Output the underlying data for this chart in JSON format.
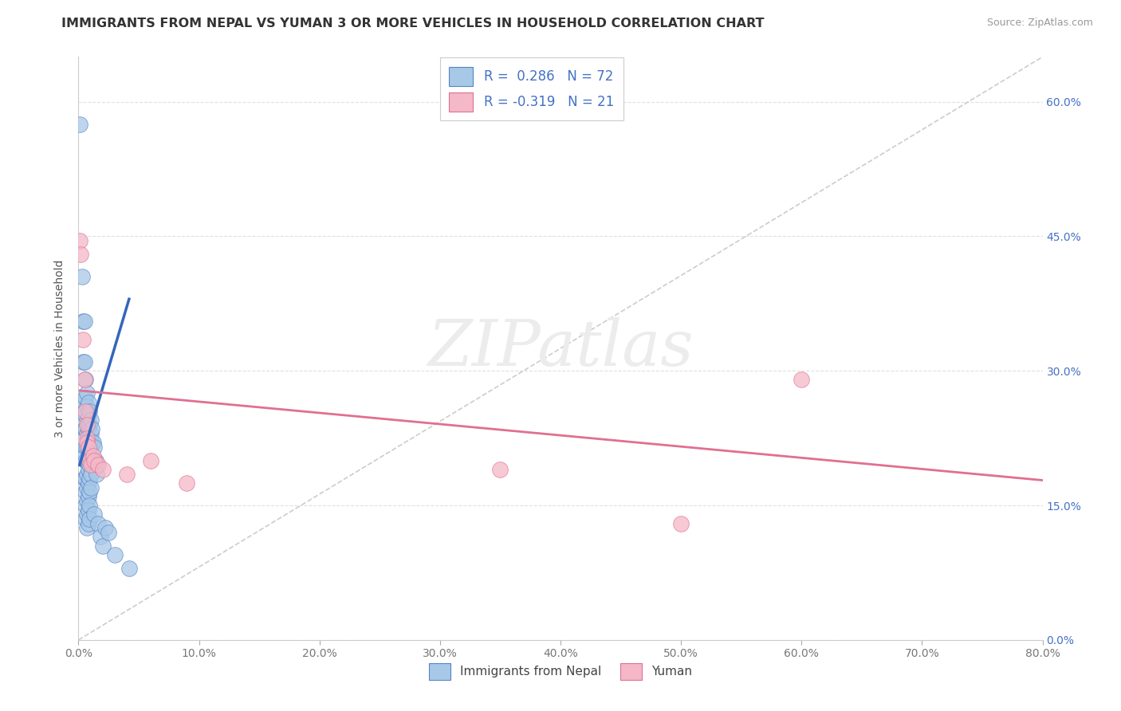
{
  "title": "IMMIGRANTS FROM NEPAL VS YUMAN 3 OR MORE VEHICLES IN HOUSEHOLD CORRELATION CHART",
  "source": "Source: ZipAtlas.com",
  "ylabel": "3 or more Vehicles in Household",
  "xmin": 0.0,
  "xmax": 0.8,
  "ymin": 0.0,
  "ymax": 0.65,
  "ytick_vals": [
    0.0,
    0.15,
    0.3,
    0.45,
    0.6
  ],
  "ytick_labels": [
    "0.0%",
    "15.0%",
    "30.0%",
    "45.0%",
    "60.0%"
  ],
  "xtick_vals": [
    0.0,
    0.1,
    0.2,
    0.3,
    0.4,
    0.5,
    0.6,
    0.7,
    0.8
  ],
  "xtick_labels": [
    "0.0%",
    "10.0%",
    "20.0%",
    "30.0%",
    "40.0%",
    "50.0%",
    "60.0%",
    "70.0%",
    "80.0%"
  ],
  "blue_color": "#a8c8e8",
  "pink_color": "#f4b8c8",
  "blue_edge_color": "#5585c5",
  "pink_edge_color": "#e07090",
  "blue_line_color": "#3366BB",
  "pink_line_color": "#E07090",
  "trend_line_color": "#c0c0c0",
  "background_color": "#ffffff",
  "grid_color": "#e0e0e0",
  "blue_scatter": [
    [
      0.001,
      0.575
    ],
    [
      0.003,
      0.405
    ],
    [
      0.004,
      0.355
    ],
    [
      0.004,
      0.31
    ],
    [
      0.005,
      0.355
    ],
    [
      0.005,
      0.31
    ],
    [
      0.005,
      0.265
    ],
    [
      0.005,
      0.235
    ],
    [
      0.005,
      0.205
    ],
    [
      0.005,
      0.18
    ],
    [
      0.006,
      0.29
    ],
    [
      0.006,
      0.27
    ],
    [
      0.006,
      0.25
    ],
    [
      0.006,
      0.235
    ],
    [
      0.006,
      0.215
    ],
    [
      0.006,
      0.2
    ],
    [
      0.006,
      0.18
    ],
    [
      0.006,
      0.165
    ],
    [
      0.006,
      0.15
    ],
    [
      0.006,
      0.135
    ],
    [
      0.007,
      0.275
    ],
    [
      0.007,
      0.26
    ],
    [
      0.007,
      0.245
    ],
    [
      0.007,
      0.23
    ],
    [
      0.007,
      0.215
    ],
    [
      0.007,
      0.2
    ],
    [
      0.007,
      0.185
    ],
    [
      0.007,
      0.17
    ],
    [
      0.007,
      0.155
    ],
    [
      0.007,
      0.14
    ],
    [
      0.007,
      0.125
    ],
    [
      0.008,
      0.265
    ],
    [
      0.008,
      0.25
    ],
    [
      0.008,
      0.235
    ],
    [
      0.008,
      0.22
    ],
    [
      0.008,
      0.205
    ],
    [
      0.008,
      0.19
    ],
    [
      0.008,
      0.175
    ],
    [
      0.008,
      0.16
    ],
    [
      0.008,
      0.145
    ],
    [
      0.008,
      0.13
    ],
    [
      0.009,
      0.255
    ],
    [
      0.009,
      0.24
    ],
    [
      0.009,
      0.225
    ],
    [
      0.009,
      0.21
    ],
    [
      0.009,
      0.195
    ],
    [
      0.009,
      0.18
    ],
    [
      0.009,
      0.165
    ],
    [
      0.009,
      0.15
    ],
    [
      0.009,
      0.135
    ],
    [
      0.01,
      0.245
    ],
    [
      0.01,
      0.23
    ],
    [
      0.01,
      0.215
    ],
    [
      0.01,
      0.2
    ],
    [
      0.01,
      0.185
    ],
    [
      0.01,
      0.17
    ],
    [
      0.011,
      0.235
    ],
    [
      0.011,
      0.22
    ],
    [
      0.011,
      0.2
    ],
    [
      0.012,
      0.22
    ],
    [
      0.013,
      0.215
    ],
    [
      0.013,
      0.14
    ],
    [
      0.014,
      0.2
    ],
    [
      0.015,
      0.195
    ],
    [
      0.015,
      0.185
    ],
    [
      0.016,
      0.13
    ],
    [
      0.018,
      0.115
    ],
    [
      0.02,
      0.105
    ],
    [
      0.022,
      0.125
    ],
    [
      0.025,
      0.12
    ],
    [
      0.03,
      0.095
    ],
    [
      0.042,
      0.08
    ]
  ],
  "pink_scatter": [
    [
      0.001,
      0.445
    ],
    [
      0.002,
      0.43
    ],
    [
      0.004,
      0.335
    ],
    [
      0.005,
      0.29
    ],
    [
      0.006,
      0.255
    ],
    [
      0.007,
      0.24
    ],
    [
      0.007,
      0.225
    ],
    [
      0.007,
      0.22
    ],
    [
      0.008,
      0.215
    ],
    [
      0.009,
      0.2
    ],
    [
      0.01,
      0.195
    ],
    [
      0.012,
      0.205
    ],
    [
      0.013,
      0.2
    ],
    [
      0.016,
      0.195
    ],
    [
      0.02,
      0.19
    ],
    [
      0.04,
      0.185
    ],
    [
      0.06,
      0.2
    ],
    [
      0.09,
      0.175
    ],
    [
      0.35,
      0.19
    ],
    [
      0.6,
      0.29
    ],
    [
      0.5,
      0.13
    ]
  ],
  "blue_line_x": [
    0.001,
    0.042
  ],
  "blue_line_y_start": 0.195,
  "blue_line_y_end": 0.38,
  "pink_line_x_start": 0.001,
  "pink_line_x_end": 0.8,
  "pink_line_y_start": 0.278,
  "pink_line_y_end": 0.178,
  "figsize": [
    14.06,
    8.92
  ],
  "dpi": 100
}
